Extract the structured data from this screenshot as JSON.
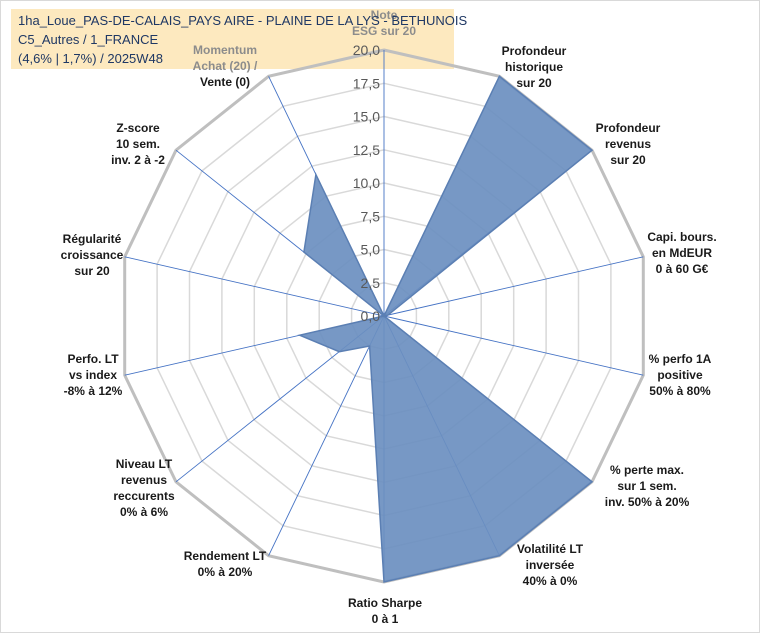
{
  "title": {
    "line1": "1ha_Loue_PAS-DE-CALAIS_PAYS AIRE - PLAINE DE LA LYS - BETHUNOIS",
    "line2": "C5_Autres / 1_FRANCE",
    "line3": "(4,6% | 1,7%) / 2025W48"
  },
  "colors": {
    "fill": "#6b8fc0",
    "stroke": "#5b7fb3",
    "grid": "#d9d9d9",
    "outer_ring": "#bfbfbf",
    "spoke": "#4472c4",
    "title_bg": "#fde9bf"
  },
  "chart_data": {
    "type": "radar",
    "r_min": 0,
    "r_max": 20,
    "ticks": [
      "0,0",
      "2,5",
      "5,0",
      "7,5",
      "10,0",
      "12,5",
      "15,0",
      "17,5",
      "20,0"
    ],
    "categories": [
      {
        "label": [
          "Note",
          "ESG sur 20"
        ],
        "value": 0,
        "faded": true
      },
      {
        "label": [
          "Profondeur",
          "historique",
          "sur 20"
        ],
        "value": 20
      },
      {
        "label": [
          "Profondeur",
          "revenus",
          "sur 20"
        ],
        "value": 20
      },
      {
        "label": [
          "Capi. bours.",
          "en MdEUR",
          "0 à 60 G€"
        ],
        "value": 0.3
      },
      {
        "label": [
          "% perfo 1A",
          "positive",
          "50% à 80%"
        ],
        "value": 0
      },
      {
        "label": [
          "% perte max.",
          "sur 1 sem.",
          "inv. 50% à 20%"
        ],
        "value": 20
      },
      {
        "label": [
          "Volatilité LT",
          "inversée",
          "40% à 0%"
        ],
        "value": 20
      },
      {
        "label": [
          "Ratio Sharpe",
          "0 à 1"
        ],
        "value": 20
      },
      {
        "label": [
          "Rendement LT",
          "0% à 20%"
        ],
        "value": 2.5
      },
      {
        "label": [
          "Niveau LT",
          "revenus",
          "reccurents",
          "0% à 6%"
        ],
        "value": 4.3
      },
      {
        "label": [
          "Perfo. LT",
          "vs index",
          "-8% à 12%"
        ],
        "value": 6.5
      },
      {
        "label": [
          "Régularité",
          "croissance",
          "sur 20"
        ],
        "value": 0
      },
      {
        "label": [
          "Z-score",
          "10 sem.",
          "inv. 2 à -2"
        ],
        "value": 7.7
      },
      {
        "label": [
          "Momentum",
          "Achat (20) /",
          "Vente (0)"
        ],
        "value": 11.8,
        "faded_lines": 2
      }
    ]
  }
}
